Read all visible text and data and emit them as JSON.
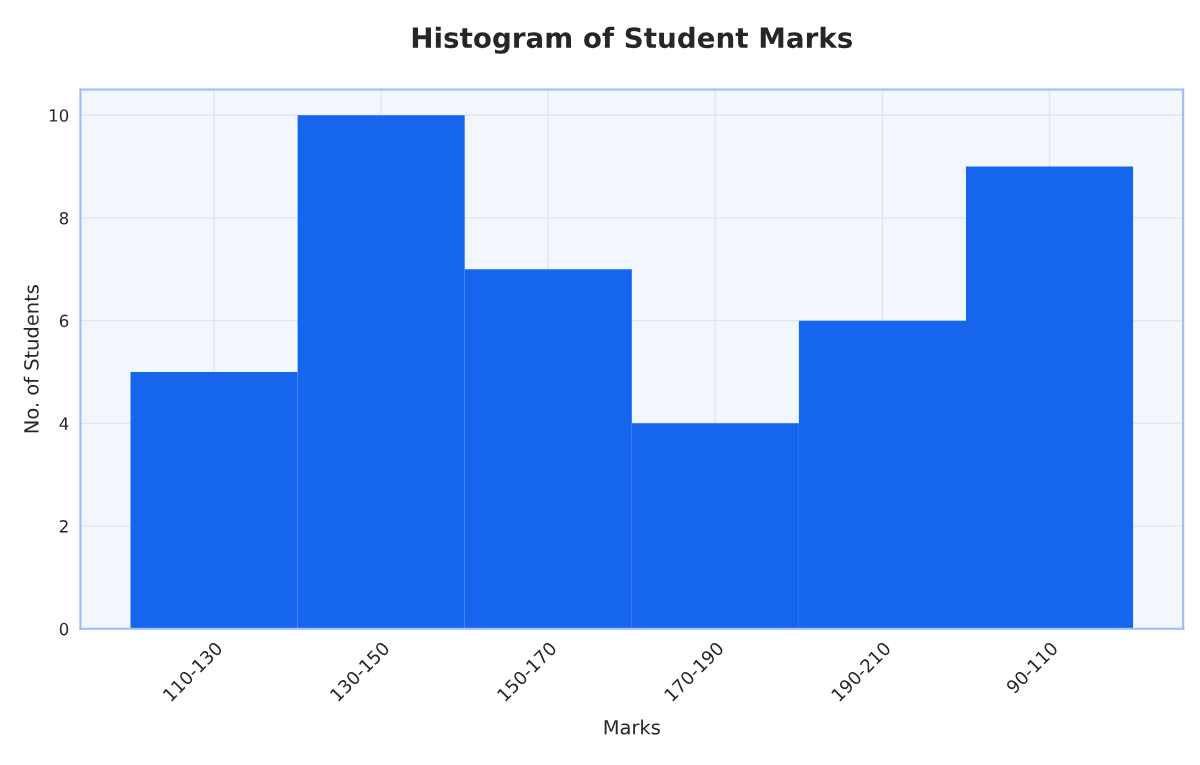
{
  "chart_data": {
    "type": "bar",
    "title": "Histogram of Student Marks",
    "xlabel": "Marks",
    "ylabel": "No. of Students",
    "categories": [
      "110-130",
      "130-150",
      "150-170",
      "170-190",
      "190-210",
      "90-110"
    ],
    "values": [
      5,
      10,
      7,
      4,
      6,
      9
    ],
    "color": "#1565ed",
    "ylim": [
      0,
      10.5
    ],
    "yticks": [
      0,
      2,
      4,
      6,
      8,
      10
    ],
    "grid": true,
    "legend": false
  }
}
